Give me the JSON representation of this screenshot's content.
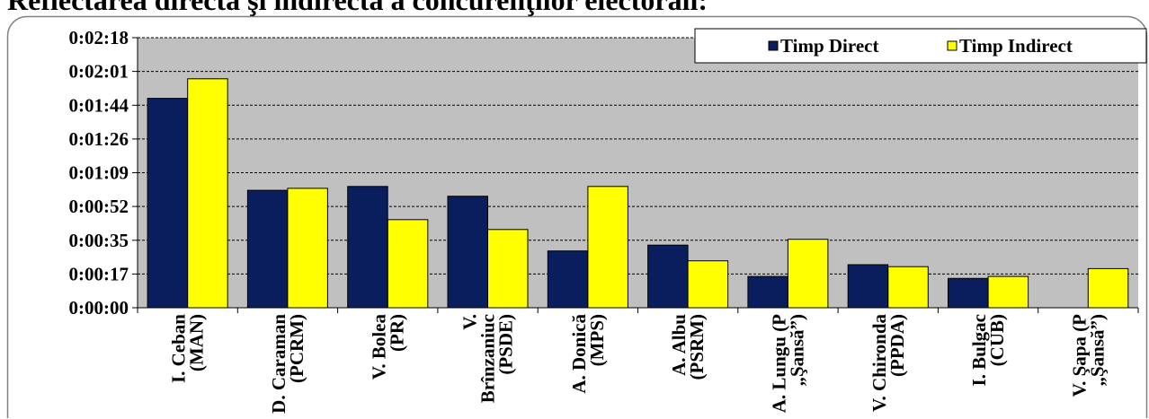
{
  "chart_data": {
    "type": "bar",
    "title": "Reflectarea directă şi indirectă a concurenţilor electorali:",
    "categories": [
      "I. Ceban (MAN)",
      "D. Caraman (PCRM)",
      "V. Bolea (PR)",
      "V. Brînzaniuc (PSDE)",
      "A. Donică (MPS)",
      "A. Albu (PSRM)",
      "A. Lungu (P „Şansă”)",
      "V. Chironda (PPDA)",
      "I. Bulgac (CUB)",
      "V. Şapa (P „Şansă”)"
    ],
    "series": [
      {
        "name": "Timp Direct",
        "color": "#0A1E5E",
        "values": [
          "0:01:47",
          "0:01:00",
          "0:01:02",
          "0:00:57",
          "0:00:29",
          "0:00:32",
          "0:00:16",
          "0:00:22",
          "0:00:15",
          "0:00:00"
        ]
      },
      {
        "name": "Timp Indirect",
        "color": "#FFFF00",
        "values": [
          "0:01:57",
          "0:01:01",
          "0:00:45",
          "0:00:40",
          "0:01:02",
          "0:00:24",
          "0:00:35",
          "0:00:21",
          "0:00:16",
          "0:00:20"
        ]
      }
    ],
    "y_ticks": [
      "0:00:00",
      "0:00:17",
      "0:00:35",
      "0:00:52",
      "0:01:09",
      "0:01:26",
      "0:01:44",
      "0:02:01",
      "0:02:18"
    ],
    "ylim": [
      "0:00:00",
      "0:02:18"
    ],
    "grid": true,
    "legend": "top-right",
    "plot_background": "#C0C0C0"
  }
}
